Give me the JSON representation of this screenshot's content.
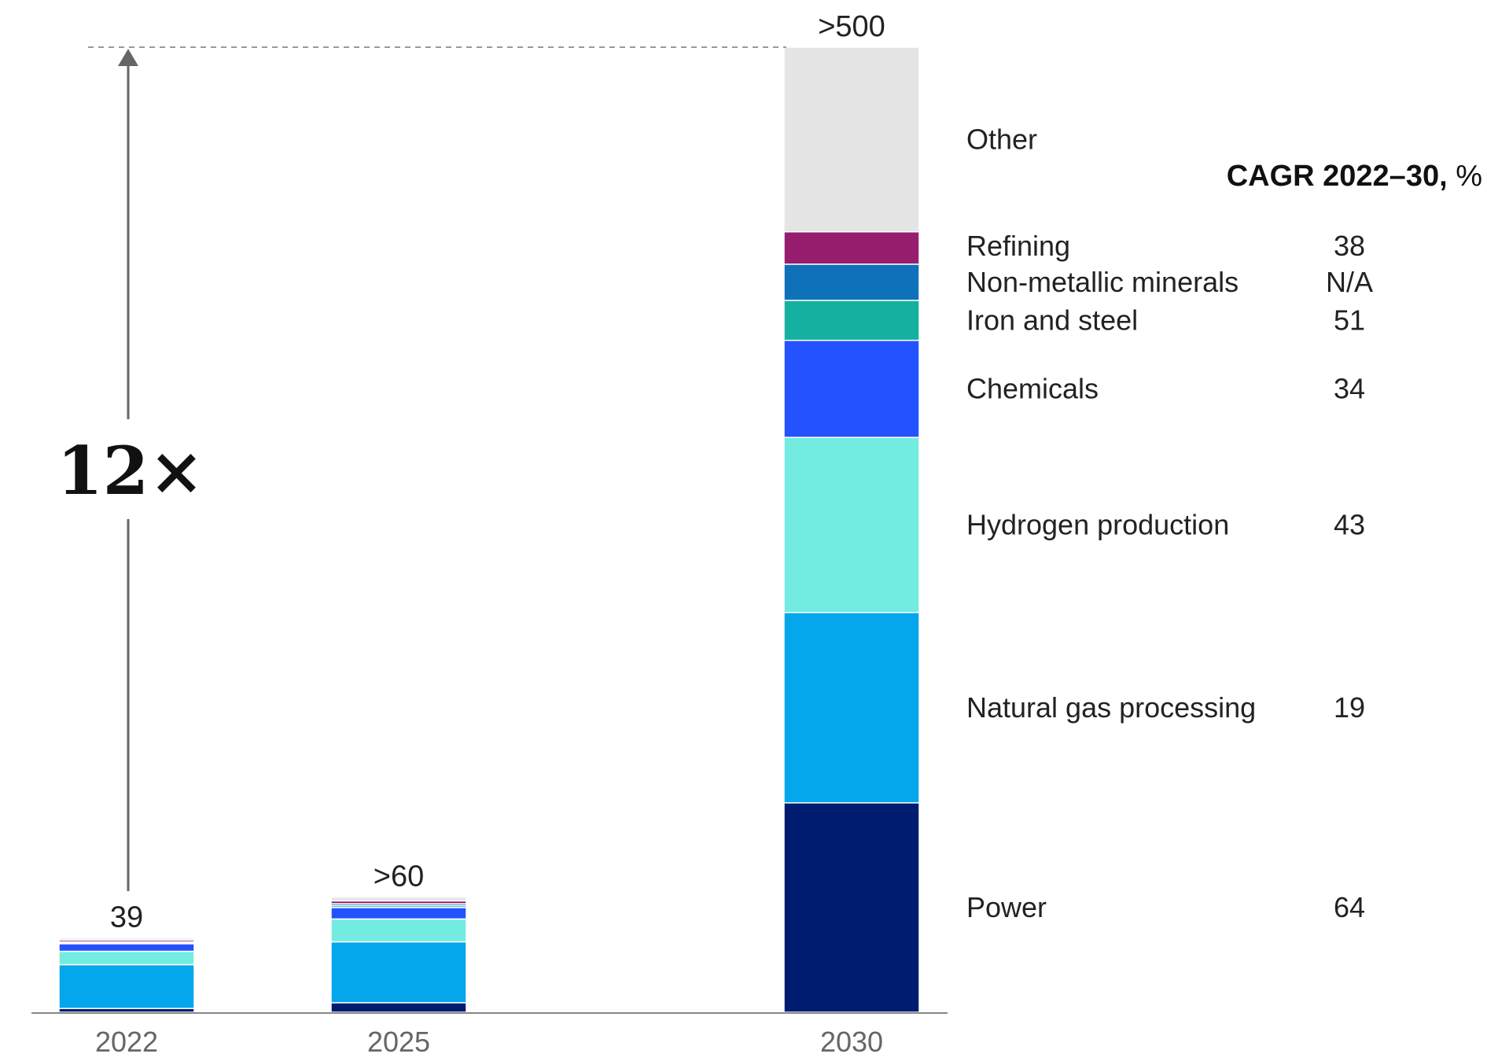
{
  "chart_data": {
    "type": "bar",
    "stacked": true,
    "categories": [
      "2022",
      "2025",
      "2030"
    ],
    "totals": [
      "39",
      ">60",
      ">500"
    ],
    "series": [
      {
        "name": "Power",
        "color": "#001c70",
        "cagr": "64",
        "values": [
          2,
          5,
          110
        ]
      },
      {
        "name": "Natural gas processing",
        "color": "#04a6ec",
        "cagr": "19",
        "values": [
          23,
          32,
          100
        ]
      },
      {
        "name": "Hydrogen production",
        "color": "#72ebe1",
        "cagr": "43",
        "values": [
          7,
          12,
          92
        ]
      },
      {
        "name": "Chemicals",
        "color": "#2353ff",
        "cagr": "34",
        "values": [
          4,
          6,
          51
        ]
      },
      {
        "name": "Iron and steel",
        "color": "#14b0a0",
        "cagr": "51",
        "values": [
          0.5,
          1,
          21
        ]
      },
      {
        "name": "Non-metallic minerals",
        "color": "#0f71b9",
        "cagr": "N/A",
        "values": [
          0.5,
          1,
          19
        ]
      },
      {
        "name": "Refining",
        "color": "#971d6e",
        "cagr": "38",
        "values": [
          1,
          1.5,
          17
        ]
      },
      {
        "name": "Other",
        "color": "#e5e5e5",
        "cagr": "",
        "values": [
          1,
          2,
          97
        ]
      }
    ],
    "growth_multiple": "12×",
    "cagr_header": {
      "bold": "CAGR 2022–30,",
      "unit": " %"
    },
    "ylim": [
      0,
      507
    ],
    "grid": false,
    "legend": "right"
  }
}
